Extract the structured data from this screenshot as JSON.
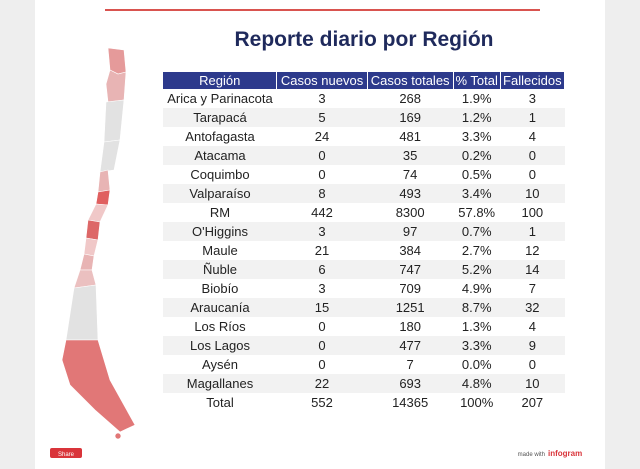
{
  "header": {
    "title": "Reporte diario por Región"
  },
  "table": {
    "columns": [
      "Región",
      "Casos nuevos",
      "Casos totales",
      "% Total",
      "Fallecidos"
    ],
    "rows": [
      [
        "Arica y Parinacota",
        3,
        268,
        "1.9%",
        3
      ],
      [
        "Tarapacá",
        5,
        169,
        "1.2%",
        1
      ],
      [
        "Antofagasta",
        24,
        481,
        "3.3%",
        4
      ],
      [
        "Atacama",
        0,
        35,
        "0.2%",
        0
      ],
      [
        "Coquimbo",
        0,
        74,
        "0.5%",
        0
      ],
      [
        "Valparaíso",
        8,
        493,
        "3.4%",
        10
      ],
      [
        "RM",
        442,
        8300,
        "57.8%",
        100
      ],
      [
        "O'Higgins",
        3,
        97,
        "0.7%",
        1
      ],
      [
        "Maule",
        21,
        384,
        "2.7%",
        12
      ],
      [
        "Ñuble",
        6,
        747,
        "5.2%",
        14
      ],
      [
        "Biobío",
        3,
        709,
        "4.9%",
        7
      ],
      [
        "Araucanía",
        15,
        1251,
        "8.7%",
        32
      ],
      [
        "Los Ríos",
        0,
        180,
        "1.3%",
        4
      ],
      [
        "Los Lagos",
        0,
        477,
        "3.3%",
        9
      ],
      [
        "Aysén",
        0,
        7,
        "0.0%",
        0
      ],
      [
        "Magallanes",
        22,
        693,
        "4.8%",
        10
      ],
      [
        "Total",
        552,
        14365,
        "100%",
        207
      ]
    ]
  },
  "footer": {
    "share": "Share",
    "made_with": "made with",
    "brand": "infogram"
  }
}
